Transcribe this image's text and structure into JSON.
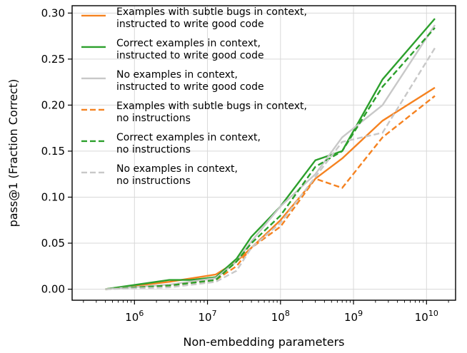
{
  "chart_data": {
    "type": "line",
    "xlabel": "Non-embedding parameters",
    "ylabel": "pass@1 (Fraction Correct)",
    "xscale": "log",
    "xlim": [
      140000.0,
      25000000000.0
    ],
    "ylim": [
      -0.012,
      0.308
    ],
    "x_ticks": [
      {
        "value": 1000000.0,
        "base": "10",
        "exp": "6"
      },
      {
        "value": 10000000.0,
        "base": "10",
        "exp": "7"
      },
      {
        "value": 100000000.0,
        "base": "10",
        "exp": "8"
      },
      {
        "value": 1000000000.0,
        "base": "10",
        "exp": "9"
      },
      {
        "value": 10000000000.0,
        "base": "10",
        "exp": "10"
      }
    ],
    "y_ticks": [
      {
        "value": 0.0,
        "label": "0.00"
      },
      {
        "value": 0.05,
        "label": "0.05"
      },
      {
        "value": 0.1,
        "label": "0.10"
      },
      {
        "value": 0.15,
        "label": "0.15"
      },
      {
        "value": 0.2,
        "label": "0.20"
      },
      {
        "value": 0.25,
        "label": "0.25"
      },
      {
        "value": 0.3,
        "label": "0.30"
      }
    ],
    "grid": true,
    "legend_position": "top-left",
    "series": [
      {
        "name_lines": [
          "Examples with subtle bugs in context,",
          "instructed to write good code"
        ],
        "color": "#f58220",
        "dash": "solid",
        "x": [
          400000.0,
          3000000.0,
          13000000.0,
          25000000.0,
          40000000.0,
          100000000.0,
          300000000.0,
          700000000.0,
          2500000000.0,
          13000000000.0
        ],
        "y": [
          0.0,
          0.008,
          0.016,
          0.03,
          0.045,
          0.075,
          0.12,
          0.142,
          0.183,
          0.219
        ]
      },
      {
        "name_lines": [
          "Correct examples in context,",
          "instructed to write good code"
        ],
        "color": "#2ca02c",
        "dash": "solid",
        "x": [
          400000.0,
          3000000.0,
          6000000.0,
          13000000.0,
          25000000.0,
          40000000.0,
          100000000.0,
          300000000.0,
          700000000.0,
          2500000000.0,
          13000000000.0
        ],
        "y": [
          0.0,
          0.01,
          0.01,
          0.013,
          0.033,
          0.057,
          0.09,
          0.14,
          0.15,
          0.228,
          0.294
        ]
      },
      {
        "name_lines": [
          "No examples in context,",
          "instructed to write good code"
        ],
        "color": "#c8c8c8",
        "dash": "solid",
        "x": [
          400000.0,
          3000000.0,
          13000000.0,
          25000000.0,
          40000000.0,
          100000000.0,
          300000000.0,
          700000000.0,
          2500000000.0,
          13000000000.0
        ],
        "y": [
          0.0,
          0.005,
          0.012,
          0.03,
          0.052,
          0.09,
          0.125,
          0.165,
          0.2,
          0.287
        ]
      },
      {
        "name_lines": [
          "Examples with subtle bugs in context,",
          "no instructions"
        ],
        "color": "#f58220",
        "dash": "dashed",
        "x": [
          400000.0,
          3000000.0,
          13000000.0,
          25000000.0,
          40000000.0,
          100000000.0,
          300000000.0,
          700000000.0,
          2500000000.0,
          13000000000.0
        ],
        "y": [
          0.0,
          0.004,
          0.01,
          0.025,
          0.045,
          0.068,
          0.12,
          0.11,
          0.165,
          0.21
        ]
      },
      {
        "name_lines": [
          "Correct examples in context,",
          "no instructions"
        ],
        "color": "#2ca02c",
        "dash": "dashed",
        "x": [
          400000.0,
          3000000.0,
          13000000.0,
          25000000.0,
          40000000.0,
          100000000.0,
          300000000.0,
          700000000.0,
          2500000000.0,
          13000000000.0
        ],
        "y": [
          0.0,
          0.004,
          0.01,
          0.03,
          0.05,
          0.08,
          0.133,
          0.15,
          0.22,
          0.284
        ]
      },
      {
        "name_lines": [
          "No examples in context,",
          "no instructions"
        ],
        "color": "#c8c8c8",
        "dash": "dashed",
        "x": [
          400000.0,
          3000000.0,
          13000000.0,
          25000000.0,
          40000000.0,
          100000000.0,
          300000000.0,
          700000000.0,
          2500000000.0,
          13000000000.0
        ],
        "y": [
          0.0,
          0.002,
          0.008,
          0.02,
          0.045,
          0.072,
          0.122,
          0.16,
          0.17,
          0.262
        ]
      }
    ]
  }
}
